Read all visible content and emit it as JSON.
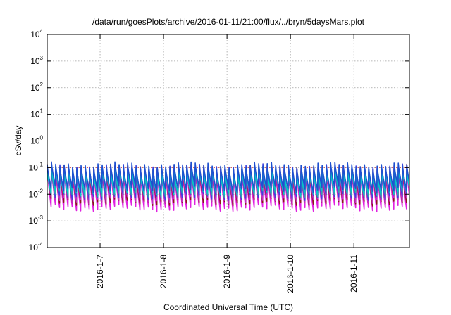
{
  "chart_data": {
    "type": "line",
    "title": "/data/run/goesPlots/archive/2016-01-11/21:00/flux/../bryn/5daysMars.plot",
    "xlabel": "Coordinated Universal Time (UTC)",
    "ylabel": "cSv/day",
    "yscale": "log",
    "ylim": [
      0.0001,
      10000
    ],
    "y_ticks": [
      {
        "base": "10",
        "exp": "-4",
        "value": 0.0001
      },
      {
        "base": "10",
        "exp": "-3",
        "value": 0.001
      },
      {
        "base": "10",
        "exp": "-2",
        "value": 0.01
      },
      {
        "base": "10",
        "exp": "-1",
        "value": 0.1
      },
      {
        "base": "10",
        "exp": "0",
        "value": 1
      },
      {
        "base": "10",
        "exp": "1",
        "value": 10
      },
      {
        "base": "10",
        "exp": "2",
        "value": 100
      },
      {
        "base": "10",
        "exp": "3",
        "value": 1000
      },
      {
        "base": "10",
        "exp": "4",
        "value": 10000
      }
    ],
    "xlim": [
      "2016-01-06 04:00",
      "2016-01-11 21:00"
    ],
    "x_ticks": [
      "2016-1-7",
      "2016-1-8",
      "2016-1-9",
      "2016-1-10",
      "2016-1-11"
    ],
    "grid": true,
    "reference_line": {
      "value": 0.1,
      "color": "#e03030"
    },
    "series": [
      {
        "color": "#e020e0",
        "peak": 0.09,
        "trough": 0.003
      },
      {
        "color": "#8b1a1a",
        "peak": 0.1,
        "trough": 0.005
      },
      {
        "color": "#c030c0",
        "peak": 0.09,
        "trough": 0.006
      },
      {
        "color": "#4040e0",
        "peak": 0.1,
        "trough": 0.008
      },
      {
        "color": "#2fa0b0",
        "peak": 0.08,
        "trough": 0.01
      },
      {
        "color": "#00c8c8",
        "peak": 0.07,
        "trough": 0.012
      },
      {
        "color": "#1e50d0",
        "peak": 0.12,
        "trough": 0.015
      }
    ],
    "cycle_hours": 1.6
  }
}
